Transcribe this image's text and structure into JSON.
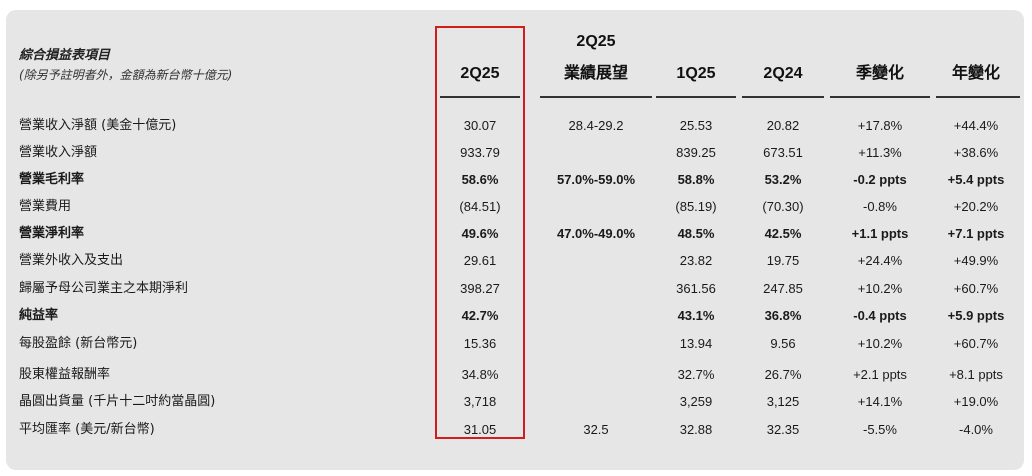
{
  "title": "綜合損益表項目",
  "subtitle": "(除另予註明者外，金額為新台幣十億元)",
  "columns": {
    "c1": [
      "",
      "2Q25"
    ],
    "c2": [
      "2Q25",
      "業績展望"
    ],
    "c3": [
      "",
      "1Q25"
    ],
    "c4": [
      "",
      "2Q24"
    ],
    "c5": [
      "",
      "季變化"
    ],
    "c6": [
      "",
      "年變化"
    ]
  },
  "highlight_color": "#d31d1d",
  "rows": [
    {
      "label": "營業收入淨額 (美金十億元)",
      "bold": false,
      "v": [
        "30.07",
        "28.4-29.2",
        "25.53",
        "20.82",
        "+17.8%",
        "+44.4%"
      ]
    },
    {
      "label": "營業收入淨額",
      "bold": false,
      "v": [
        "933.79",
        "",
        "839.25",
        "673.51",
        "+11.3%",
        "+38.6%"
      ]
    },
    {
      "label": "營業毛利率",
      "bold": true,
      "v": [
        "58.6%",
        "57.0%-59.0%",
        "58.8%",
        "53.2%",
        "-0.2 ppts",
        "+5.4 ppts"
      ]
    },
    {
      "label": "營業費用",
      "bold": false,
      "v": [
        "(84.51)",
        "",
        "(85.19)",
        "(70.30)",
        "-0.8%",
        "+20.2%"
      ]
    },
    {
      "label": "營業淨利率",
      "bold": true,
      "v": [
        "49.6%",
        "47.0%-49.0%",
        "48.5%",
        "42.5%",
        "+1.1 ppts",
        "+7.1 ppts"
      ]
    },
    {
      "label": "營業外收入及支出",
      "bold": false,
      "v": [
        "29.61",
        "",
        "23.82",
        "19.75",
        "+24.4%",
        "+49.9%"
      ]
    },
    {
      "label": "歸屬予母公司業主之本期淨利",
      "bold": false,
      "v": [
        "398.27",
        "",
        "361.56",
        "247.85",
        "+10.2%",
        "+60.7%"
      ]
    },
    {
      "label": "純益率",
      "bold": true,
      "v": [
        "42.7%",
        "",
        "43.1%",
        "36.8%",
        "-0.4 ppts",
        "+5.9 ppts"
      ]
    },
    {
      "label": "每股盈餘 (新台幣元)",
      "bold": false,
      "v": [
        "15.36",
        "",
        "13.94",
        "9.56",
        "+10.2%",
        "+60.7%"
      ]
    },
    {
      "label": "股東權益報酬率",
      "bold": false,
      "v": [
        "34.8%",
        "",
        "32.7%",
        "26.7%",
        "+2.1 ppts",
        "+8.1 ppts"
      ]
    },
    {
      "label": "晶圓出貨量 (千片十二吋約當晶圓)",
      "bold": false,
      "v": [
        "3,718",
        "",
        "3,259",
        "3,125",
        "+14.1%",
        "+19.0%"
      ]
    },
    {
      "label": "平均匯率 (美元/新台幣)",
      "bold": false,
      "v": [
        "31.05",
        "32.5",
        "32.88",
        "32.35",
        "-5.5%",
        "-4.0%"
      ]
    }
  ]
}
